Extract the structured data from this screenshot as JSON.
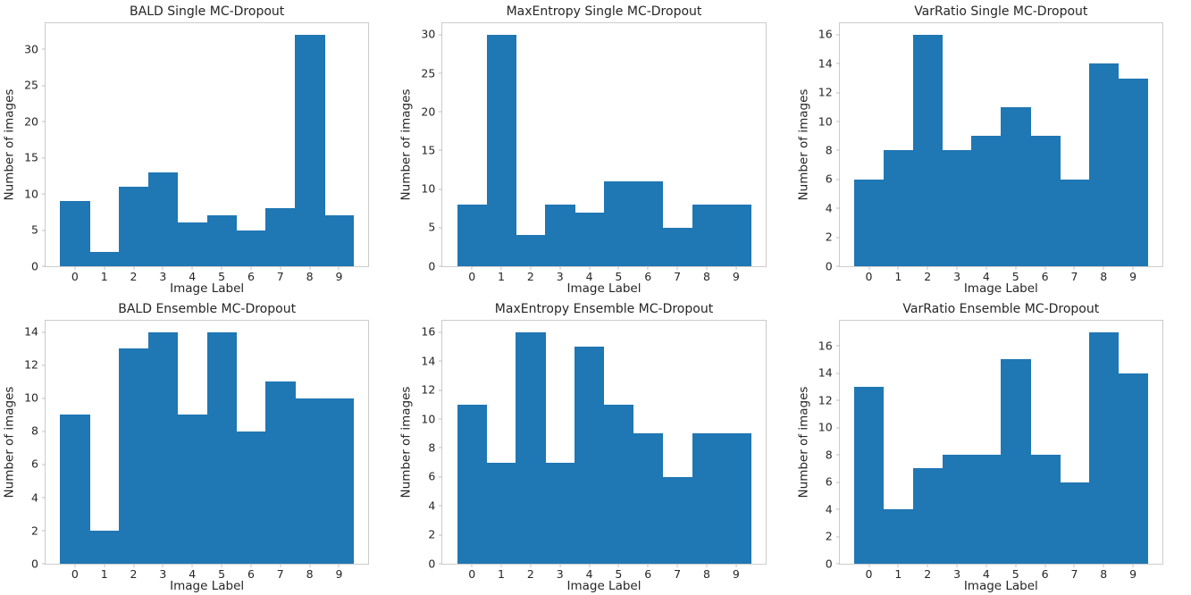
{
  "figure": {
    "background": "#ffffff",
    "rows": 2,
    "cols": 3
  },
  "colors": {
    "bar": "#1f77b4",
    "spine": "#cccccc",
    "tick": "#bfbfbf",
    "text": "#262626"
  },
  "chart_data": [
    {
      "type": "bar",
      "title": "BALD Single MC-Dropout",
      "xlabel": "Image Label",
      "ylabel": "Number of images",
      "categories": [
        "0",
        "1",
        "2",
        "3",
        "4",
        "5",
        "6",
        "7",
        "8",
        "9"
      ],
      "values": [
        9,
        2,
        11,
        13,
        6,
        7,
        5,
        8,
        32,
        7
      ],
      "yticks": [
        0,
        5,
        10,
        15,
        20,
        25,
        30
      ],
      "ylim": [
        0,
        33.6
      ],
      "xlim": [
        -1,
        10
      ],
      "grid": false,
      "legend": null
    },
    {
      "type": "bar",
      "title": "MaxEntropy Single MC-Dropout",
      "xlabel": "Image Label",
      "ylabel": "Number of images",
      "categories": [
        "0",
        "1",
        "2",
        "3",
        "4",
        "5",
        "6",
        "7",
        "8",
        "9"
      ],
      "values": [
        8,
        30,
        4,
        8,
        7,
        11,
        11,
        5,
        8,
        8
      ],
      "yticks": [
        0,
        5,
        10,
        15,
        20,
        25,
        30
      ],
      "ylim": [
        0,
        31.5
      ],
      "xlim": [
        -1,
        10
      ],
      "grid": false,
      "legend": null
    },
    {
      "type": "bar",
      "title": "VarRatio Single MC-Dropout",
      "xlabel": "Image Label",
      "ylabel": "Number of images",
      "categories": [
        "0",
        "1",
        "2",
        "3",
        "4",
        "5",
        "6",
        "7",
        "8",
        "9"
      ],
      "values": [
        6,
        8,
        16,
        8,
        9,
        11,
        9,
        6,
        14,
        13
      ],
      "yticks": [
        0,
        2,
        4,
        6,
        8,
        10,
        12,
        14,
        16
      ],
      "ylim": [
        0,
        16.8
      ],
      "xlim": [
        -1,
        10
      ],
      "grid": false,
      "legend": null
    },
    {
      "type": "bar",
      "title": "BALD Ensemble MC-Dropout",
      "xlabel": "Image Label",
      "ylabel": "Number of images",
      "categories": [
        "0",
        "1",
        "2",
        "3",
        "4",
        "5",
        "6",
        "7",
        "8",
        "9"
      ],
      "values": [
        9,
        2,
        13,
        14,
        9,
        14,
        8,
        11,
        10,
        10
      ],
      "yticks": [
        0,
        2,
        4,
        6,
        8,
        10,
        12,
        14
      ],
      "ylim": [
        0,
        14.7
      ],
      "xlim": [
        -1,
        10
      ],
      "grid": false,
      "legend": null
    },
    {
      "type": "bar",
      "title": "MaxEntropy Ensemble MC-Dropout",
      "xlabel": "Image Label",
      "ylabel": "Number of images",
      "categories": [
        "0",
        "1",
        "2",
        "3",
        "4",
        "5",
        "6",
        "7",
        "8",
        "9"
      ],
      "values": [
        11,
        7,
        16,
        7,
        15,
        11,
        9,
        6,
        9,
        9
      ],
      "yticks": [
        0,
        2,
        4,
        6,
        8,
        10,
        12,
        14,
        16
      ],
      "ylim": [
        0,
        16.8
      ],
      "xlim": [
        -1,
        10
      ],
      "grid": false,
      "legend": null
    },
    {
      "type": "bar",
      "title": "VarRatio Ensemble MC-Dropout",
      "xlabel": "Image Label",
      "ylabel": "Number of images",
      "categories": [
        "0",
        "1",
        "2",
        "3",
        "4",
        "5",
        "6",
        "7",
        "8",
        "9"
      ],
      "values": [
        13,
        4,
        7,
        8,
        8,
        15,
        8,
        6,
        17,
        14
      ],
      "yticks": [
        0,
        2,
        4,
        6,
        8,
        10,
        12,
        14,
        16
      ],
      "ylim": [
        0,
        17.85
      ],
      "xlim": [
        -1,
        10
      ],
      "grid": false,
      "legend": null
    }
  ]
}
